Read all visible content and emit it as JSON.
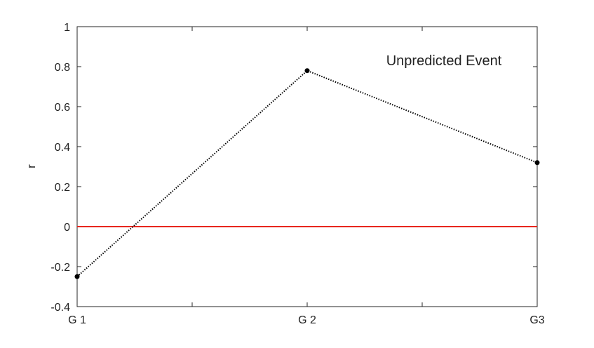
{
  "chart_data": {
    "type": "line",
    "categories": [
      "G 1",
      "G 2",
      "G3"
    ],
    "ylabel": "r",
    "ylim": [
      -0.4,
      1
    ],
    "yticks": [
      "-0.4",
      "-0.2",
      "0",
      "0.2",
      "0.4",
      "0.6",
      "0.8",
      "1"
    ],
    "annotation": "Unpredicted Event",
    "series": [
      {
        "values": [
          -0.25,
          0.78,
          0.32
        ],
        "color": "#000000",
        "line_style": "dotted",
        "marker": "dot"
      }
    ],
    "reference_line": {
      "y": 0,
      "color": "#e8261e"
    },
    "grid": false,
    "box": true
  }
}
